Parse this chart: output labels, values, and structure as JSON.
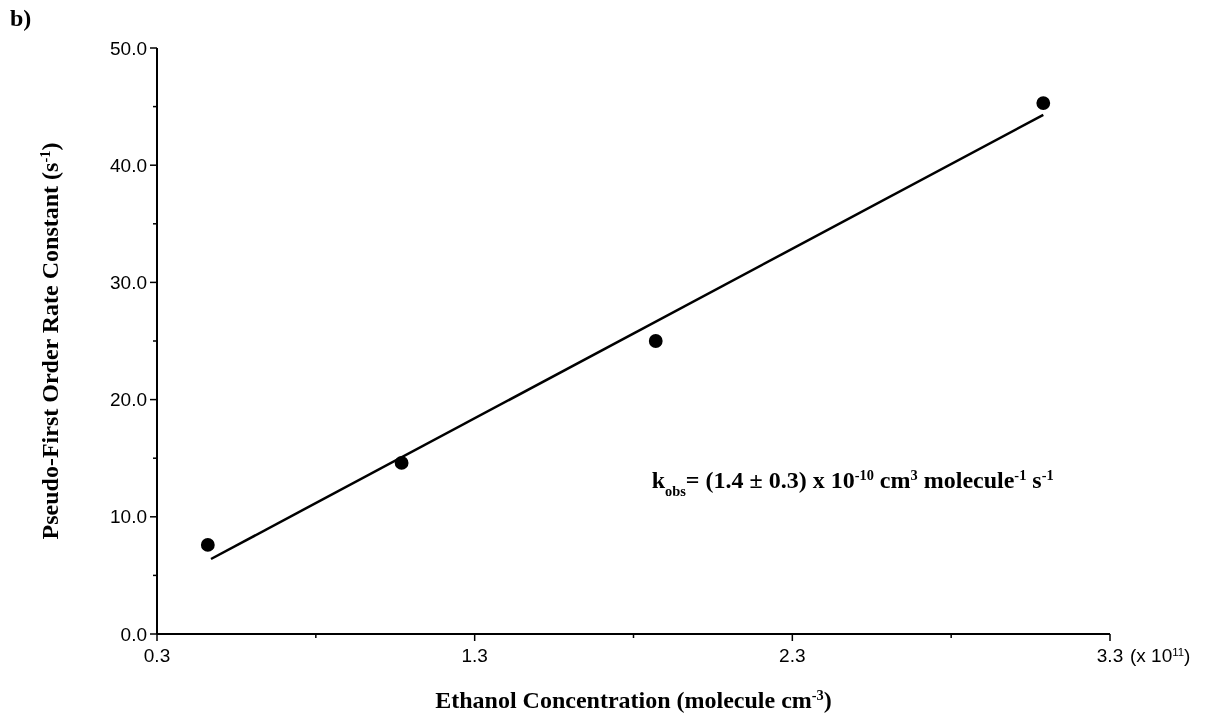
{
  "chart_data": {
    "type": "scatter",
    "xlabel": "Ethanol Concentration (molecule cm$^{-3}$)",
    "ylabel": "Pseudo-First Order Rate Constant (s$^{-1}$)",
    "annotations": [
      "b)",
      "(x 10$^{11}$)",
      "k$_{obs}$= (1.4 ± 0.3) x 10$^{-10}$ cm$^{3}$ molecule$^{-1}$ s$^{-1}$"
    ],
    "xlim": [
      0.3,
      3.3
    ],
    "xticks": [
      {
        "value": 0.3,
        "label": "0.3"
      },
      {
        "value": 0.8,
        "label": null
      },
      {
        "value": 1.3,
        "label": "1.3"
      },
      {
        "value": 1.8,
        "label": null
      },
      {
        "value": 2.3,
        "label": "2.3"
      },
      {
        "value": 2.8,
        "label": null
      },
      {
        "value": 3.3,
        "label": "3.3"
      }
    ],
    "ylim": [
      0,
      50
    ],
    "yticks": [
      {
        "value": 0,
        "label": "0.0"
      },
      {
        "value": 5,
        "label": null
      },
      {
        "value": 10,
        "label": "10.0"
      },
      {
        "value": 15,
        "label": null
      },
      {
        "value": 20,
        "label": "20.0"
      },
      {
        "value": 25,
        "label": null
      },
      {
        "value": 30,
        "label": "30.0"
      },
      {
        "value": 35,
        "label": null
      },
      {
        "value": 40,
        "label": "40.0"
      },
      {
        "value": 45,
        "label": null
      },
      {
        "value": 50,
        "label": "50.0"
      }
    ],
    "grid": false,
    "series": [
      {
        "marker": "circle",
        "color": "#000000",
        "x": [
          0.46,
          1.07,
          1.87,
          3.09
        ],
        "values": [
          7.6,
          14.6,
          25.0,
          45.3
        ]
      },
      {
        "type": "line",
        "color": "#000000",
        "x": [
          0.47,
          3.09
        ],
        "values": [
          6.4,
          44.3
        ]
      }
    ]
  }
}
